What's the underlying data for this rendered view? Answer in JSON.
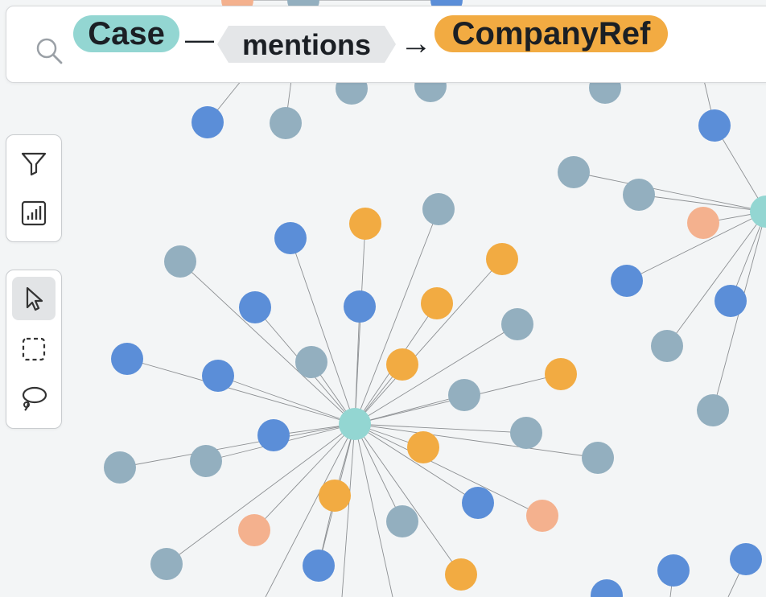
{
  "search": {
    "source_label": "Case",
    "relation_label": "mentions",
    "target_label": "CompanyRef",
    "connector_dash": "—",
    "connector_arrow": "→",
    "icon": "search-icon"
  },
  "toolbar": {
    "filter_icon": "filter-icon",
    "chart_icon": "bar-chart-icon",
    "select_icon": "pointer-icon",
    "box_select_icon": "box-select-icon",
    "lasso_icon": "lasso-icon",
    "active_tool": "select"
  },
  "colors": {
    "case": "#93d6d2",
    "company_ref": "#f2ab42",
    "blue": "#5b8ed8",
    "gray": "#93afbf",
    "peach": "#f4b18e",
    "edge": "#8c8f92"
  }
}
